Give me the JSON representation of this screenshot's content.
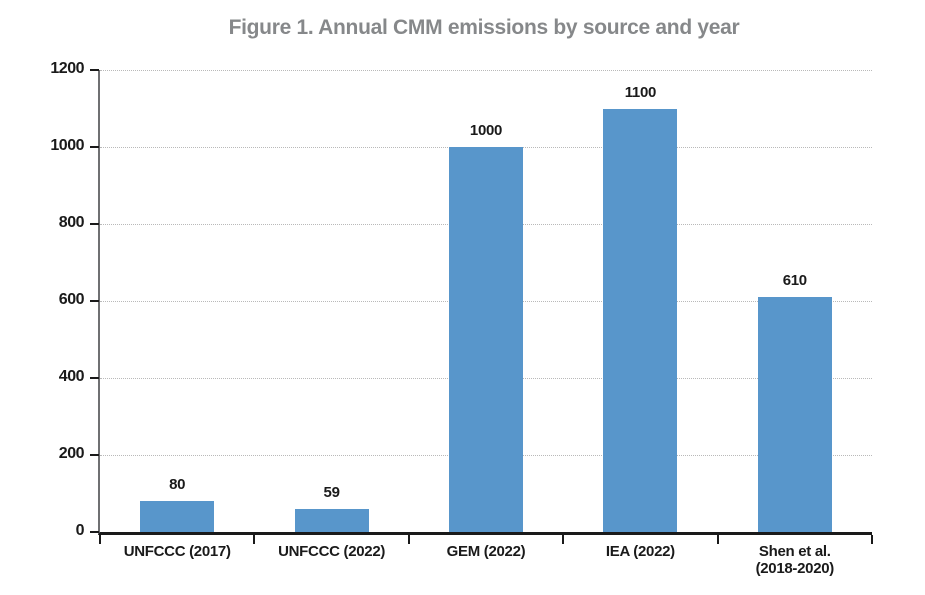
{
  "chart_data": {
    "type": "bar",
    "title": "Figure 1. Annual CMM emissions by source and year",
    "categories": [
      "UNFCCC (2017)",
      "UNFCCC (2022)",
      "GEM (2022)",
      "IEA (2022)",
      "Shen et al.\n(2018-2020)"
    ],
    "values": [
      80,
      59,
      1000,
      1100,
      610
    ],
    "data_labels": [
      "80",
      "59",
      "1000",
      "1100",
      "610"
    ],
    "xlabel": "",
    "ylabel": "",
    "ylim": [
      0,
      1200
    ],
    "yticks": [
      0,
      200,
      400,
      600,
      800,
      1000,
      1200
    ],
    "grid": "horizontal-dotted",
    "legend": "none",
    "bar_color": "#5896CB"
  },
  "colors": {
    "background": "#FFFFFF",
    "title_text": "#86888A",
    "axis_text": "#1A1A1A",
    "bar": "#5896CB",
    "gridline": "#B9B9B9",
    "y_axis_line": "#6F7072",
    "x_axis_line": "#1A1A1A"
  }
}
